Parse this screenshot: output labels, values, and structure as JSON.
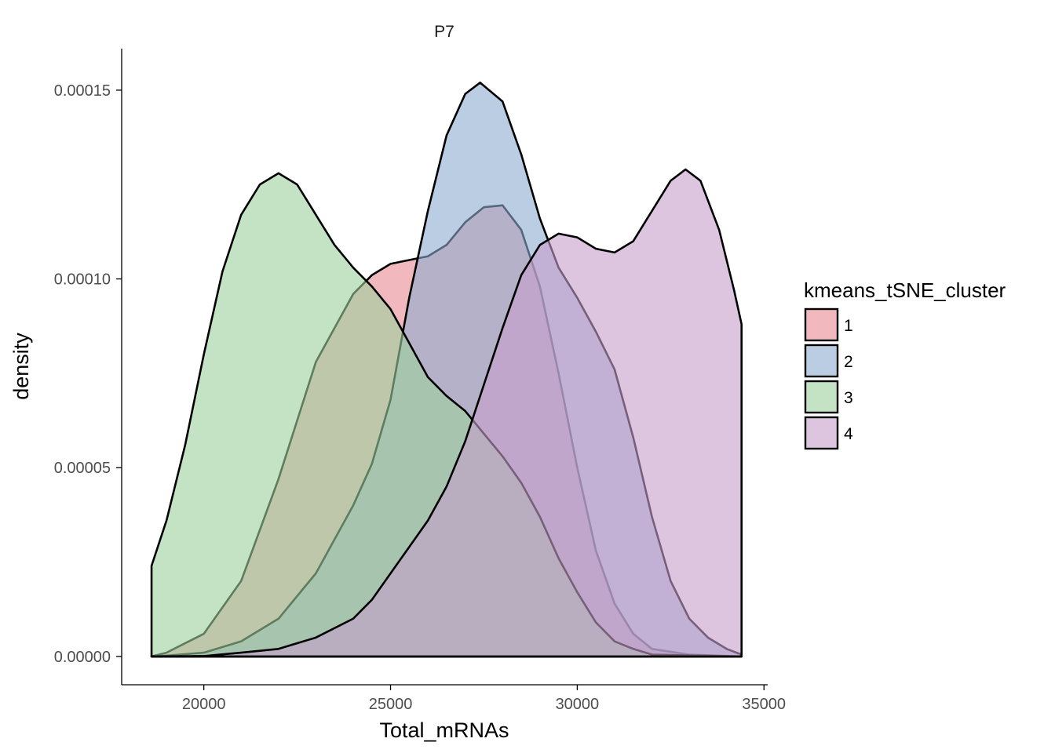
{
  "chart_data": {
    "type": "area",
    "subtype": "density",
    "facet_title": "P7",
    "xlabel": "Total_mRNAs",
    "ylabel": "density",
    "xlim": [
      17800,
      35100
    ],
    "ylim": [
      -7.5e-06,
      0.000161
    ],
    "x_ticks": [
      20000,
      25000,
      30000,
      35000
    ],
    "x_tick_labels": [
      "20000",
      "25000",
      "30000",
      "35000"
    ],
    "y_ticks": [
      0,
      5e-05,
      0.0001,
      0.00015
    ],
    "y_tick_labels": [
      "0.00000",
      "0.00005",
      "0.00010",
      "0.00015"
    ],
    "grid": false,
    "legend": {
      "title": "kmeans_tSNE_cluster",
      "position": "right"
    },
    "series": [
      {
        "name": "1",
        "fill": "#e88b93",
        "fill_opacity": 0.6,
        "points": [
          [
            18600,
            0
          ],
          [
            19000,
            1e-06
          ],
          [
            20000,
            6e-06
          ],
          [
            21000,
            2e-05
          ],
          [
            22000,
            4.7e-05
          ],
          [
            23000,
            7.8e-05
          ],
          [
            24000,
            9.6e-05
          ],
          [
            24500,
            0.000101
          ],
          [
            25000,
            0.000104
          ],
          [
            25500,
            0.000105
          ],
          [
            26000,
            0.000106
          ],
          [
            26500,
            0.000109
          ],
          [
            27000,
            0.000115
          ],
          [
            27500,
            0.000119
          ],
          [
            28000,
            0.0001195
          ],
          [
            28500,
            0.000113
          ],
          [
            29000,
            9.8e-05
          ],
          [
            29500,
            7.5e-05
          ],
          [
            30000,
            5e-05
          ],
          [
            30500,
            2.8e-05
          ],
          [
            31000,
            1.4e-05
          ],
          [
            31500,
            6e-06
          ],
          [
            32000,
            2e-06
          ],
          [
            33000,
            5e-07
          ],
          [
            34400,
            0
          ]
        ]
      },
      {
        "name": "2",
        "fill": "#8eacd1",
        "fill_opacity": 0.6,
        "points": [
          [
            18600,
            0
          ],
          [
            19000,
            2e-07
          ],
          [
            20000,
            1e-06
          ],
          [
            21000,
            4e-06
          ],
          [
            22000,
            1e-05
          ],
          [
            23000,
            2.2e-05
          ],
          [
            24000,
            4e-05
          ],
          [
            24500,
            5.1e-05
          ],
          [
            25000,
            6.8e-05
          ],
          [
            25500,
            9.5e-05
          ],
          [
            26000,
            0.000118
          ],
          [
            26500,
            0.000138
          ],
          [
            27000,
            0.000149
          ],
          [
            27400,
            0.000152
          ],
          [
            28000,
            0.000147
          ],
          [
            28500,
            0.000133
          ],
          [
            29000,
            0.000116
          ],
          [
            29500,
            0.000103
          ],
          [
            30000,
            9.5e-05
          ],
          [
            30500,
            8.6e-05
          ],
          [
            31000,
            7.6e-05
          ],
          [
            31500,
            5.8e-05
          ],
          [
            32000,
            3.7e-05
          ],
          [
            32500,
            2e-05
          ],
          [
            33000,
            1e-05
          ],
          [
            33500,
            5e-06
          ],
          [
            34000,
            2e-06
          ],
          [
            34400,
            5e-07
          ]
        ]
      },
      {
        "name": "3",
        "fill": "#9dd09d",
        "fill_opacity": 0.6,
        "points": [
          [
            18600,
            2.4e-05
          ],
          [
            19000,
            3.6e-05
          ],
          [
            19500,
            5.6e-05
          ],
          [
            20000,
            8e-05
          ],
          [
            20500,
            0.000102
          ],
          [
            21000,
            0.000117
          ],
          [
            21500,
            0.000125
          ],
          [
            22000,
            0.000128
          ],
          [
            22500,
            0.000125
          ],
          [
            23000,
            0.000117
          ],
          [
            23500,
            0.000109
          ],
          [
            24000,
            0.000103
          ],
          [
            24500,
            9.8e-05
          ],
          [
            25000,
            9.2e-05
          ],
          [
            25500,
            8.3e-05
          ],
          [
            26000,
            7.4e-05
          ],
          [
            26500,
            6.9e-05
          ],
          [
            27000,
            6.5e-05
          ],
          [
            27500,
            5.9e-05
          ],
          [
            28000,
            5.3e-05
          ],
          [
            28500,
            4.6e-05
          ],
          [
            29000,
            3.7e-05
          ],
          [
            29500,
            2.6e-05
          ],
          [
            30000,
            1.7e-05
          ],
          [
            30500,
            9e-06
          ],
          [
            31000,
            4e-06
          ],
          [
            31500,
            2e-06
          ],
          [
            32000,
            5e-07
          ],
          [
            34400,
            0
          ]
        ]
      },
      {
        "name": "4",
        "fill": "#c79ecb",
        "fill_opacity": 0.6,
        "points": [
          [
            18600,
            0
          ],
          [
            20000,
            1e-07
          ],
          [
            21000,
            1e-06
          ],
          [
            22000,
            2e-06
          ],
          [
            23000,
            5e-06
          ],
          [
            24000,
            1e-05
          ],
          [
            24500,
            1.5e-05
          ],
          [
            25000,
            2.2e-05
          ],
          [
            25500,
            2.9e-05
          ],
          [
            26000,
            3.6e-05
          ],
          [
            26500,
            4.5e-05
          ],
          [
            27000,
            5.7e-05
          ],
          [
            27500,
            7.2e-05
          ],
          [
            28000,
            8.7e-05
          ],
          [
            28500,
            0.000101
          ],
          [
            29000,
            0.000109
          ],
          [
            29500,
            0.000112
          ],
          [
            30000,
            0.000111
          ],
          [
            30500,
            0.000108
          ],
          [
            31000,
            0.000107
          ],
          [
            31500,
            0.00011
          ],
          [
            32000,
            0.000118
          ],
          [
            32500,
            0.000126
          ],
          [
            32900,
            0.000129
          ],
          [
            33300,
            0.000126
          ],
          [
            33800,
            0.000113
          ],
          [
            34200,
            9.7e-05
          ],
          [
            34400,
            8.8e-05
          ]
        ]
      }
    ]
  }
}
